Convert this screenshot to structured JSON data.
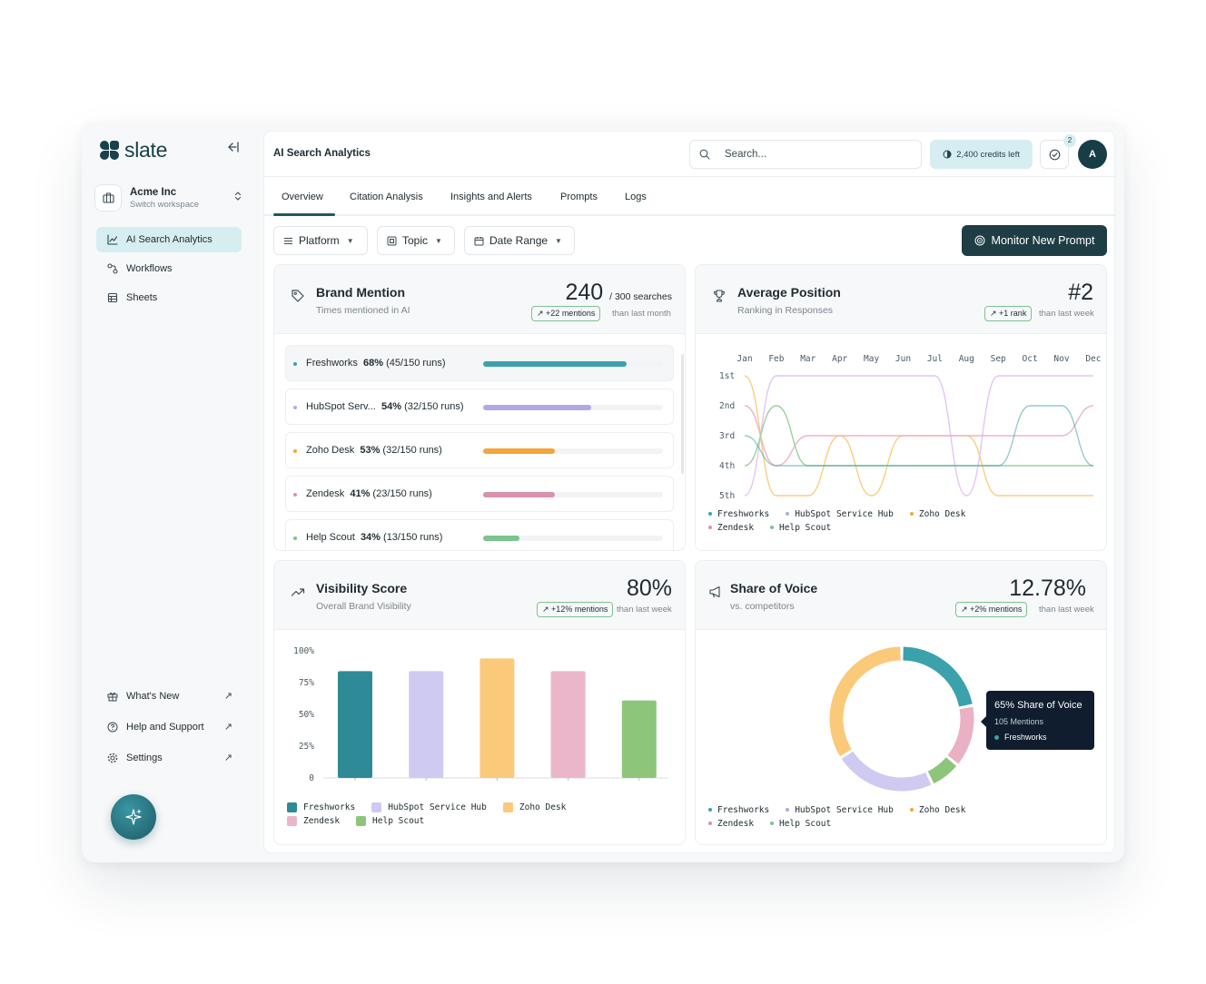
{
  "app": {
    "name": "slate"
  },
  "workspace": {
    "name": "Acme Inc",
    "sub": "Switch workspace"
  },
  "sidebar": {
    "items": [
      {
        "label": "AI Search Analytics",
        "icon": "chart-line-icon",
        "active": true
      },
      {
        "label": "Workflows",
        "icon": "workflow-icon",
        "active": false
      },
      {
        "label": "Sheets",
        "icon": "table-icon",
        "active": false
      }
    ],
    "bottom": [
      {
        "label": "What's New",
        "icon": "gift-icon"
      },
      {
        "label": "Help and Support",
        "icon": "help-circle-icon"
      },
      {
        "label": "Settings",
        "icon": "gear-icon"
      }
    ]
  },
  "header": {
    "title": "AI Search Analytics",
    "search_placeholder": "Search...",
    "credits": "2,400 credits left",
    "notification_count": "2",
    "avatar_initial": "A"
  },
  "tabs": [
    "Overview",
    "Citation Analysis",
    "Insights and Alerts",
    "Prompts",
    "Logs"
  ],
  "filters": [
    "Platform",
    "Topic",
    "Date Range"
  ],
  "monitor_button": "Monitor New Prompt",
  "colors": {
    "Freshworks": "#3ba2ab",
    "HubSpot Service Hub": "#b4a8e4",
    "Zoho Desk": "#f3a53a",
    "Zendesk": "#d991ad",
    "Help Scout": "#7cc38f"
  },
  "brand_mention": {
    "title": "Brand Mention",
    "sub": "Times mentioned in AI",
    "value": "240",
    "value_suffix": "/ 300 searches",
    "delta": "+22 mentions",
    "delta_note": "than last month",
    "rows": [
      {
        "name": "Freshworks",
        "pct": "68%",
        "runs": "(45/150 runs)",
        "fraction": 0.8
      },
      {
        "name": "HubSpot Serv...",
        "pct": "54%",
        "runs": "(32/150 runs)",
        "fraction": 0.6
      },
      {
        "name": "Zoho Desk",
        "pct": "53%",
        "runs": "(32/150 runs)",
        "fraction": 0.4
      },
      {
        "name": "Zendesk",
        "pct": "41%",
        "runs": "(23/150 runs)",
        "fraction": 0.4
      },
      {
        "name": "Help Scout",
        "pct": "34%",
        "runs": "(13/150 runs)",
        "fraction": 0.2
      }
    ]
  },
  "average_position": {
    "title": "Average Position",
    "sub": "Ranking in Responses",
    "value": "#2",
    "delta": "+1 rank",
    "delta_note": "than last week"
  },
  "visibility_score": {
    "title": "Visibility Score",
    "sub": "Overall Brand Visibility",
    "value": "80%",
    "delta": "+12% mentions",
    "delta_note": "than last week"
  },
  "share_of_voice": {
    "title": "Share of Voice",
    "sub": "vs. competitors",
    "value": "12.78%",
    "delta": "+2% mentions",
    "delta_note": "than last week",
    "tooltip": {
      "title": "65% Share of Voice",
      "mentions": "105 Mentions",
      "brand": "Freshworks"
    }
  },
  "chart_data": [
    {
      "type": "line",
      "x": [
        "Jan",
        "Feb",
        "Mar",
        "Apr",
        "May",
        "Jun",
        "Jul",
        "Aug",
        "Sep",
        "Oct",
        "Nov",
        "Dec"
      ],
      "y_ticks": [
        "1st",
        "2nd",
        "3rd",
        "4th",
        "5th"
      ],
      "y_inverted": true,
      "series": [
        {
          "name": "Freshworks",
          "values": [
            3,
            4,
            4,
            4,
            4,
            4,
            4,
            4,
            4,
            2,
            2,
            4
          ]
        },
        {
          "name": "HubSpot Service Hub",
          "values": [
            5,
            1,
            1,
            1,
            1,
            1,
            1,
            5,
            1,
            1,
            1,
            1
          ]
        },
        {
          "name": "Zoho Desk",
          "values": [
            1,
            5,
            5,
            3,
            5,
            3,
            3,
            3,
            5,
            5,
            5,
            5
          ]
        },
        {
          "name": "Zendesk",
          "values": [
            2,
            4,
            3,
            3,
            3,
            3,
            3,
            3,
            3,
            3,
            3,
            2
          ]
        },
        {
          "name": "Help Scout",
          "values": [
            4,
            2,
            4,
            4,
            4,
            4,
            4,
            4,
            4,
            4,
            4,
            4
          ]
        }
      ]
    },
    {
      "type": "bar",
      "categories": [
        "Freshworks",
        "HubSpot Service Hub",
        "Zoho Desk",
        "Zendesk",
        "Help Scout"
      ],
      "values": [
        84,
        84,
        94,
        84,
        61
      ],
      "y_ticks": [
        "100%",
        "75%",
        "50%",
        "25%",
        "0"
      ],
      "ylim": [
        0,
        100
      ]
    },
    {
      "type": "pie",
      "categories": [
        "Freshworks",
        "Zendesk",
        "Help Scout",
        "HubSpot Service Hub",
        "Zoho Desk"
      ],
      "values": [
        22,
        14,
        7,
        23,
        34
      ]
    }
  ]
}
